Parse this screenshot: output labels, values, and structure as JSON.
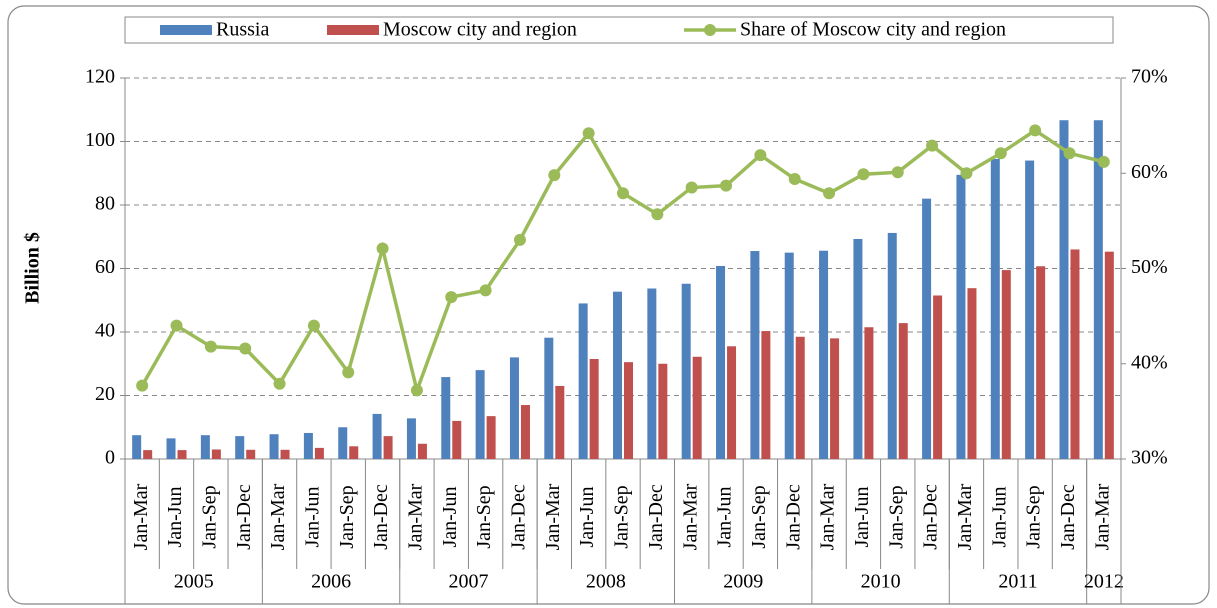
{
  "chart_data": {
    "type": "bar_line",
    "ylabel": "Billion $",
    "categories": [
      "Jan-Mar",
      "Jan-Jun",
      "Jan-Sep",
      "Jan-Dec",
      "Jan-Mar",
      "Jan-Jun",
      "Jan-Sep",
      "Jan-Dec",
      "Jan-Mar",
      "Jan-Jun",
      "Jan-Sep",
      "Jan-Dec",
      "Jan-Mar",
      "Jan-Jun",
      "Jan-Sep",
      "Jan-Dec",
      "Jan-Mar",
      "Jan-Jun",
      "Jan-Sep",
      "Jan-Dec",
      "Jan-Mar",
      "Jan-Jun",
      "Jan-Sep",
      "Jan-Dec",
      "Jan-Mar",
      "Jan-Jun",
      "Jan-Sep",
      "Jan-Dec",
      "Jan-Mar"
    ],
    "x_groups": [
      "2005",
      null,
      null,
      null,
      "2006",
      null,
      null,
      null,
      "2007",
      null,
      null,
      null,
      "2008",
      null,
      null,
      null,
      "2009",
      null,
      null,
      null,
      "2010",
      null,
      null,
      null,
      "2011",
      null,
      null,
      null,
      "2012"
    ],
    "series": [
      {
        "name": "Russia",
        "type": "bar",
        "color": "#4f81bd",
        "values": [
          7.5,
          6.5,
          7.5,
          7.2,
          7.8,
          8.2,
          10,
          14.2,
          12.8,
          25.8,
          28,
          32,
          38.2,
          49,
          52.7,
          53.7,
          55.2,
          60.8,
          65.5,
          65,
          65.6,
          69.3,
          71.2,
          82,
          89.5,
          94.5,
          94,
          106.7,
          106.7
        ]
      },
      {
        "name": "Moscow city and region",
        "type": "bar",
        "color": "#c0504d",
        "values": [
          2.8,
          2.8,
          3,
          2.9,
          2.9,
          3.5,
          4,
          7.2,
          4.8,
          12,
          13.5,
          17,
          23,
          31.5,
          30.5,
          30,
          32.2,
          35.5,
          40.3,
          38.5,
          38,
          41.5,
          42.8,
          51.5,
          53.8,
          59.5,
          60.7,
          66,
          65.3
        ]
      },
      {
        "name": "Share of Moscow city and region",
        "type": "line",
        "axis": "y2",
        "color": "#9bbb59",
        "values": [
          37.7,
          44,
          41.8,
          41.6,
          37.9,
          44,
          39.1,
          52.1,
          37.2,
          47,
          47.7,
          53,
          59.8,
          64.2,
          57.9,
          55.7,
          58.5,
          58.7,
          61.9,
          59.4,
          57.9,
          59.9,
          60.1,
          62.9,
          60,
          62.1,
          64.5,
          62.1,
          61.2
        ]
      }
    ],
    "ylim": [
      0,
      120
    ],
    "yticks": [
      0,
      20,
      40,
      60,
      80,
      100,
      120
    ],
    "y2lim": [
      30,
      70
    ],
    "y2ticks": [
      {
        "value": 30,
        "label": "30%"
      },
      {
        "value": 40,
        "label": "40%"
      },
      {
        "value": 50,
        "label": "50%"
      },
      {
        "value": 60,
        "label": "60%"
      },
      {
        "value": 70,
        "label": "70%"
      }
    ],
    "grid": true,
    "legend": "top"
  }
}
